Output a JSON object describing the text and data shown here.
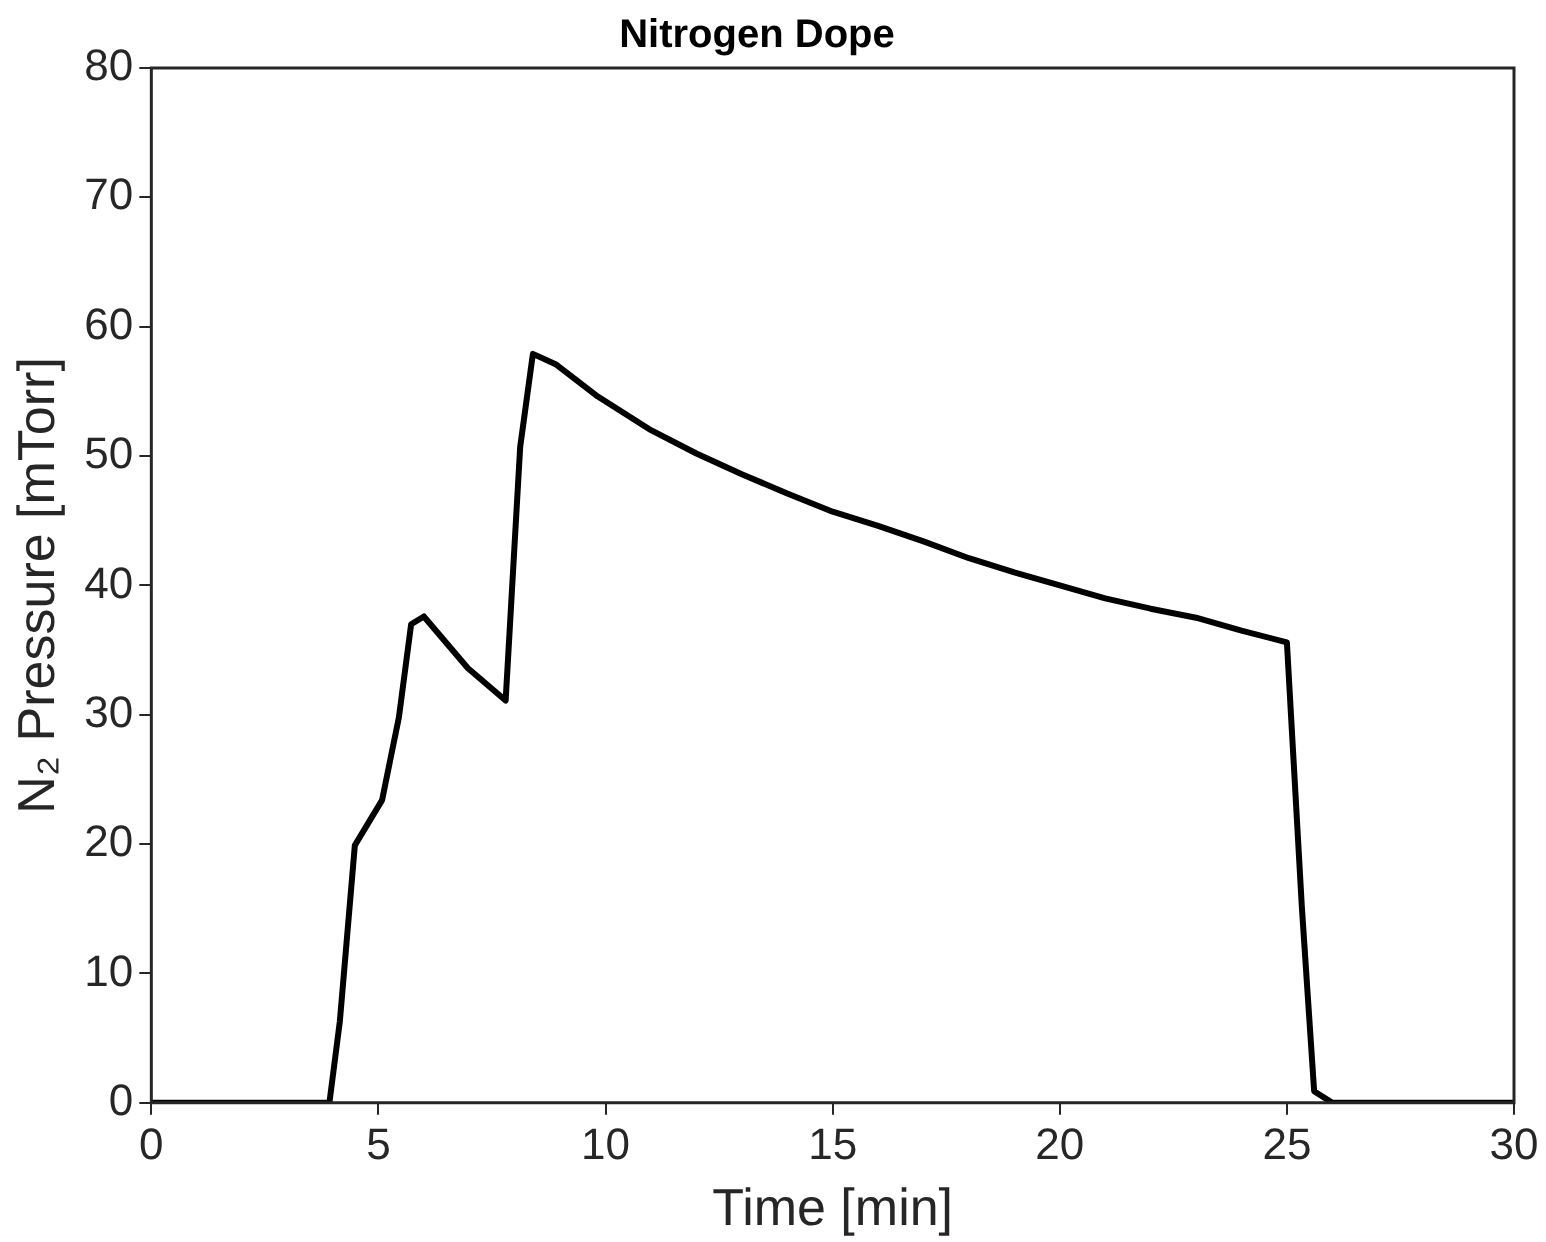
{
  "chart_data": {
    "type": "line",
    "title": "Nitrogen Dope",
    "xlabel": "Time [min]",
    "ylabel": "N₂ Pressure [mTorr]",
    "x": [
      0,
      3.92,
      4.15,
      4.48,
      5.08,
      5.45,
      5.72,
      6.0,
      6.97,
      7.8,
      8.12,
      8.4,
      8.9,
      9.83,
      11,
      12,
      13,
      14,
      15,
      16,
      17,
      18,
      19,
      20,
      21,
      22,
      23,
      24,
      25,
      25.33,
      25.6,
      26,
      30
    ],
    "series": [
      {
        "color": "#000000",
        "values": [
          0,
          0,
          6.3,
          19.9,
          23.4,
          29.8,
          37,
          37.6,
          33.6,
          31.1,
          50.7,
          57.9,
          57.1,
          54.6,
          52,
          50.2,
          48.6,
          47.1,
          45.7,
          44.6,
          43.4,
          42.1,
          41,
          40,
          39,
          38.2,
          37.5,
          36.5,
          35.6,
          15.1,
          0.9,
          0,
          0
        ]
      }
    ],
    "xlim": [
      0,
      30
    ],
    "xticks": [
      0,
      5,
      10,
      15,
      20,
      25,
      30
    ],
    "ylim": [
      0,
      80
    ],
    "yticks": [
      0,
      10,
      20,
      30,
      40,
      50,
      60,
      70,
      80
    ],
    "grid": false,
    "legend": false,
    "marker": "none",
    "line_style": "solid"
  }
}
